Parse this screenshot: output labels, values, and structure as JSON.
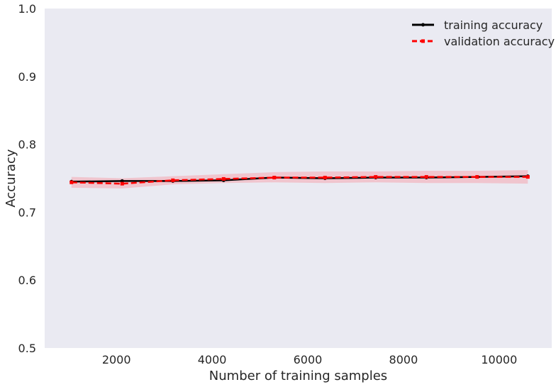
{
  "chart_data": {
    "type": "line",
    "xlabel": "Number of training samples",
    "ylabel": "Accuracy",
    "xlim": [
      500,
      11100
    ],
    "ylim": [
      0.5,
      1.0
    ],
    "xticks": [
      2000,
      4000,
      6000,
      8000,
      10000
    ],
    "yticks": [
      0.5,
      0.6,
      0.7,
      0.8,
      0.9,
      1.0
    ],
    "ytick_labels": [
      "0.5",
      "0.6",
      "0.7",
      "0.8",
      "0.9",
      "1.0"
    ],
    "grid": false,
    "legend_position": "top-right",
    "background": "#eaeaf2",
    "x": [
      1060,
      2120,
      3180,
      4240,
      5300,
      6360,
      7420,
      8480,
      9540,
      10600
    ],
    "series": [
      {
        "name": "training accuracy",
        "color": "#000000",
        "linestyle": "solid",
        "marker": "circle",
        "values": [
          0.745,
          0.746,
          0.746,
          0.747,
          0.751,
          0.75,
          0.751,
          0.751,
          0.752,
          0.753
        ],
        "band": null
      },
      {
        "name": "validation accuracy",
        "color": "#ff0000",
        "linestyle": "dashed",
        "marker": "square",
        "values": [
          0.744,
          0.742,
          0.747,
          0.749,
          0.751,
          0.751,
          0.752,
          0.752,
          0.752,
          0.752
        ],
        "band": {
          "color": "#f4a6b0",
          "lower": [
            0.736,
            0.735,
            0.741,
            0.743,
            0.744,
            0.743,
            0.744,
            0.743,
            0.743,
            0.742
          ],
          "upper": [
            0.752,
            0.75,
            0.753,
            0.756,
            0.759,
            0.76,
            0.76,
            0.761,
            0.761,
            0.762
          ]
        }
      }
    ]
  }
}
